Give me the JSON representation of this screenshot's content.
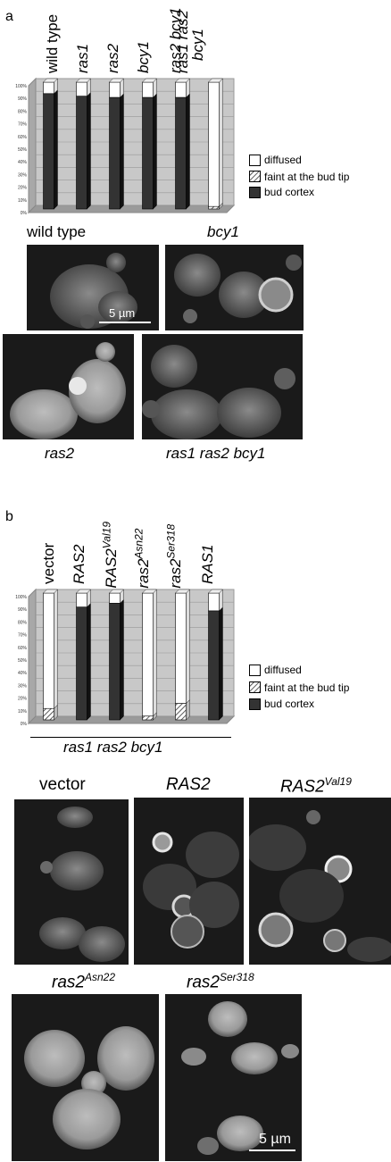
{
  "panel_a": {
    "letter": "a",
    "columns": [
      {
        "label": "wild type",
        "italic": false
      },
      {
        "label": "ras1",
        "italic": true
      },
      {
        "label": "ras2",
        "italic": true
      },
      {
        "label": "bcy1",
        "italic": true
      },
      {
        "label": "ras2 bcy1",
        "italic": true
      },
      {
        "label": "ras1 ras2",
        "label2": "bcy1",
        "italic": true
      }
    ],
    "micrographs": [
      {
        "label": "wild type",
        "italic": false
      },
      {
        "label": "bcy1",
        "italic": true
      },
      {
        "label": "ras2",
        "italic": true
      },
      {
        "label": "ras1 ras2 bcy1",
        "italic": true
      }
    ],
    "scale_bar": "5 µm"
  },
  "panel_b": {
    "letter": "b",
    "columns": [
      {
        "label": "vector",
        "sup": ""
      },
      {
        "label": "RAS2",
        "sup": ""
      },
      {
        "label": "RAS2",
        "sup": "Val19"
      },
      {
        "label": "ras2",
        "sup": "Asn22"
      },
      {
        "label": "ras2",
        "sup": "Ser318"
      },
      {
        "label": "RAS1",
        "sup": ""
      }
    ],
    "strain_label": "ras1 ras2 bcy1",
    "micrographs": [
      {
        "label": "vector",
        "sup": "",
        "italic": false
      },
      {
        "label": "RAS2",
        "sup": "",
        "italic": true
      },
      {
        "label": "RAS2",
        "sup": "Val19",
        "italic": true
      },
      {
        "label": "ras2",
        "sup": "Asn22",
        "italic": true
      },
      {
        "label": "ras2",
        "sup": "Ser318",
        "italic": true
      }
    ],
    "scale_bar": "5 µm"
  },
  "legend": {
    "diffused": "diffused",
    "faint": "faint at the bud tip",
    "cortex": "bud cortex"
  },
  "chart_data": [
    {
      "type": "bar",
      "stacked": true,
      "categories": [
        "wild type",
        "ras1",
        "ras2",
        "bcy1",
        "ras2 bcy1",
        "ras1 ras2 bcy1"
      ],
      "series": [
        {
          "name": "bud cortex",
          "values": [
            91,
            89,
            88,
            88,
            88,
            0
          ]
        },
        {
          "name": "faint at the bud tip",
          "values": [
            0,
            0,
            0,
            0,
            0,
            2
          ]
        },
        {
          "name": "diffused",
          "values": [
            9,
            11,
            12,
            12,
            12,
            98
          ]
        }
      ],
      "yticks": [
        "0%",
        "10%",
        "20%",
        "30%",
        "40%",
        "50%",
        "60%",
        "70%",
        "80%",
        "90%",
        "100%"
      ],
      "ylim": [
        0,
        100
      ]
    },
    {
      "type": "bar",
      "stacked": true,
      "categories": [
        "vector",
        "RAS2",
        "RAS2 Val19",
        "ras2 Asn22",
        "ras2 Ser318",
        "RAS1"
      ],
      "series": [
        {
          "name": "bud cortex",
          "values": [
            0,
            89,
            92,
            0,
            0,
            86
          ]
        },
        {
          "name": "faint at the bud tip",
          "values": [
            9,
            0,
            0,
            3,
            13,
            0
          ]
        },
        {
          "name": "diffused",
          "values": [
            91,
            11,
            8,
            97,
            87,
            14
          ]
        }
      ],
      "yticks": [
        "0%",
        "10%",
        "20%",
        "30%",
        "40%",
        "50%",
        "60%",
        "70%",
        "80%",
        "90%",
        "100%"
      ],
      "ylim": [
        0,
        100
      ]
    }
  ]
}
